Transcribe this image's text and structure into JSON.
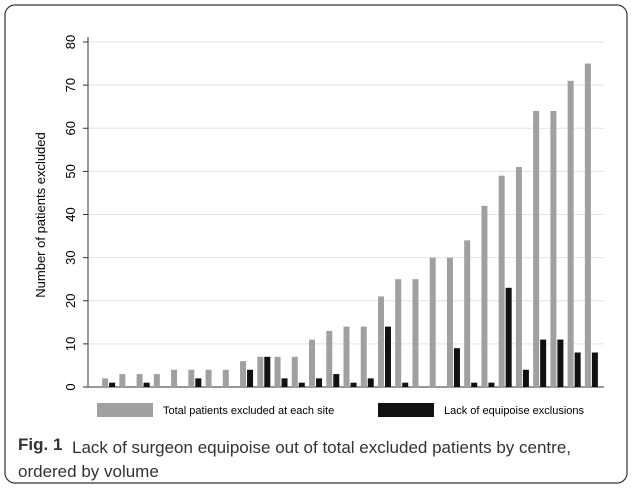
{
  "chart_data": {
    "type": "bar",
    "ylabel": "Number of patients excluded",
    "categories": [
      null,
      null,
      null,
      null,
      null,
      null,
      null,
      null,
      null,
      null,
      null,
      null,
      null,
      null,
      null,
      null,
      null,
      null,
      null,
      null,
      null,
      null,
      null,
      null,
      null,
      null,
      null,
      null,
      null
    ],
    "series": [
      {
        "name": "Total patients excluded at each site",
        "color": "#a0a0a0",
        "values": [
          2,
          3,
          3,
          3,
          4,
          4,
          4,
          4,
          6,
          7,
          7,
          7,
          11,
          13,
          14,
          14,
          21,
          25,
          25,
          30,
          30,
          34,
          42,
          49,
          51,
          64,
          64,
          71,
          75
        ]
      },
      {
        "name": "Lack of equipoise exclusions",
        "color": "#111111",
        "values": [
          1,
          0,
          1,
          0,
          0,
          2,
          0,
          0,
          4,
          7,
          2,
          1,
          2,
          3,
          1,
          2,
          14,
          1,
          0,
          0,
          9,
          1,
          1,
          23,
          4,
          11,
          11,
          8,
          8
        ]
      }
    ],
    "ylim": [
      0,
      80
    ],
    "yticks": [
      0,
      10,
      20,
      30,
      40,
      50,
      60,
      70,
      80
    ],
    "grid": true,
    "legend": "bottom"
  },
  "caption": {
    "label": "Fig. 1",
    "text": "Lack of surgeon equipoise out of total excluded patients by centre, ordered by volume"
  }
}
